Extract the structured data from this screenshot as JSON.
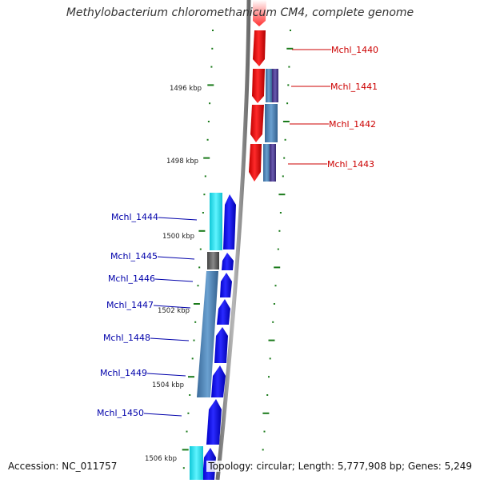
{
  "title": "Methylobacterium chloromethanicum CM4, complete genome",
  "accession": "Accession: NC_011757",
  "topology": "Topology: circular; Length: 5,777,908 bp; Genes: 5,249",
  "colors": {
    "forward_gene": "#ff0000",
    "reverse_gene": "#0000ff",
    "forward_label": "#cc0000",
    "reverse_label": "#0000aa",
    "tick": "#1a7a1a",
    "backbone": "#8c8c8c",
    "cyan_feature": "#22e6f0",
    "steel_feature": "#4a7fb0",
    "purple_feature": "#4a3a8c",
    "gray_feature": "#5a5a5a"
  },
  "kbp_labels": [
    {
      "text": "1496 kbp"
    },
    {
      "text": "1498 kbp"
    },
    {
      "text": "1500 kbp"
    },
    {
      "text": "1502 kbp"
    },
    {
      "text": "1504 kbp"
    },
    {
      "text": "1506 kbp"
    }
  ],
  "genes_forward": [
    {
      "label": "Mchl_1440"
    },
    {
      "label": "Mchl_1441"
    },
    {
      "label": "Mchl_1442"
    },
    {
      "label": "Mchl_1443"
    }
  ],
  "genes_reverse": [
    {
      "label": "Mchl_1444"
    },
    {
      "label": "Mchl_1445"
    },
    {
      "label": "Mchl_1446"
    },
    {
      "label": "Mchl_1447"
    },
    {
      "label": "Mchl_1448"
    },
    {
      "label": "Mchl_1449"
    },
    {
      "label": "Mchl_1450"
    }
  ]
}
